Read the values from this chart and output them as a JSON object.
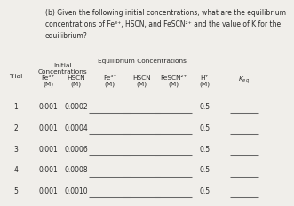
{
  "title_line1": "(b) Given the following initial concentrations, what are the equilibrium",
  "title_line2": "concentrations of Fe³⁺, HSCN, and FeSCN²⁺ and the value of K for the",
  "title_line3": "equilibrium?",
  "trials": [
    1,
    2,
    3,
    4,
    5
  ],
  "fe3_init": [
    "0.001",
    "0.001",
    "0.001",
    "0.001",
    "0.001"
  ],
  "hscn_init": [
    "0.0002",
    "0.0004",
    "0.0006",
    "0.0008",
    "0.0010"
  ],
  "h_eq": [
    "0.5",
    "0.5",
    "0.5",
    "0.5",
    "0.5"
  ],
  "bg_color": "#f0eeea",
  "text_color": "#2a2a2a",
  "line_color": "#666666",
  "fontsize_title": 5.5,
  "fontsize_header": 5.3,
  "fontsize_data": 5.5
}
